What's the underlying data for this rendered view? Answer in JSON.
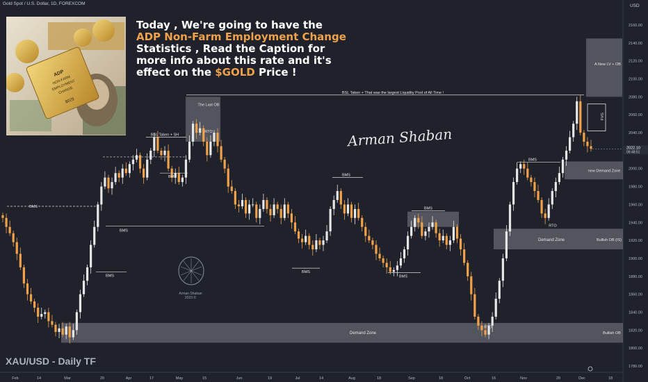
{
  "symbol_title": "Gold Spot / U.S. Dollar, 1D, FOREXCOM",
  "currency": "USD",
  "headline": {
    "line1": "Today , We're going to have the",
    "line2_highlight": "ADP Non-Farm Employment Change",
    "line3": "Statistics , Read the Caption for",
    "line4": "more info about this rate and it's",
    "line5_pre": "effect on the ",
    "line5_highlight": "$GOLD",
    "line5_post": " Price !"
  },
  "timeframe_label": "XAU/USD - Daily TF",
  "signature": "Arman Shaban",
  "watermark": {
    "name": "Arman Shaban",
    "year": "2023 ©"
  },
  "news_image": {
    "badge_text": "ADP NON-FARM EMPLOYMENT CHANGE",
    "price_tag": "$029"
  },
  "colors": {
    "background": "#1f222b",
    "up": "#e6e6e6",
    "down": "#f0a14a",
    "zone": "#7b7f86",
    "highlight": "#f0a14a"
  },
  "chart_data": {
    "type": "candlestick",
    "title": "Gold Spot / U.S. Dollar, 1D, FOREXCOM",
    "ylim": [
      1775,
      2170
    ],
    "y_ticks": [
      1780,
      1800,
      1820,
      1840,
      1860,
      1880,
      1900,
      1920,
      1940,
      1960,
      1980,
      2000,
      2020,
      2040,
      2060,
      2080,
      2100,
      2120,
      2140,
      2160
    ],
    "x_tick_labels": [
      "Feb",
      "14",
      "Mar",
      "20",
      "Apr",
      "17",
      "May",
      "15",
      "Jun",
      "19",
      "Jul",
      "14",
      "Aug",
      "18",
      "Sep",
      "18",
      "Oct",
      "16",
      "Nov",
      "20",
      "Dec",
      "18"
    ],
    "current_price": "2022.10",
    "current_countdown": "09:48:51",
    "closes": [
      1945,
      1935,
      1928,
      1918,
      1905,
      1890,
      1872,
      1860,
      1852,
      1845,
      1835,
      1838,
      1840,
      1830,
      1826,
      1818,
      1822,
      1815,
      1824,
      1812,
      1820,
      1840,
      1860,
      1875,
      1890,
      1915,
      1935,
      1960,
      1980,
      1990,
      1978,
      1985,
      1995,
      1990,
      2000,
      1995,
      2005,
      2010,
      2015,
      2000,
      1990,
      2010,
      2020,
      2035,
      2020,
      2015,
      2020,
      2000,
      1990,
      1995,
      1985,
      1990,
      2010,
      2030,
      2050,
      2040,
      2045,
      2030,
      2015,
      2030,
      2040,
      2025,
      2010,
      2000,
      1980,
      1975,
      1960,
      1958,
      1965,
      1950,
      1960,
      1960,
      1945,
      1955,
      1965,
      1955,
      1948,
      1960,
      1955,
      1945,
      1960,
      1950,
      1940,
      1930,
      1922,
      1918,
      1925,
      1915,
      1910,
      1920,
      1915,
      1920,
      1930,
      1955,
      1965,
      1975,
      1960,
      1950,
      1960,
      1945,
      1955,
      1945,
      1935,
      1925,
      1920,
      1915,
      1905,
      1900,
      1895,
      1890,
      1885,
      1887,
      1892,
      1900,
      1910,
      1925,
      1935,
      1945,
      1940,
      1925,
      1930,
      1935,
      1940,
      1928,
      1920,
      1925,
      1915,
      1920,
      1935,
      1922,
      1910,
      1895,
      1880,
      1860,
      1835,
      1825,
      1820,
      1815,
      1825,
      1835,
      1855,
      1875,
      1900,
      1930,
      1960,
      1985,
      2000,
      2005,
      2000,
      1990,
      1985,
      1975,
      1965,
      1950,
      1945,
      1960,
      1975,
      1985,
      1995,
      2010,
      2020,
      2035,
      2050,
      2075,
      2040,
      2030,
      2025,
      2022
    ],
    "annotations": {
      "headline_line": "BSL Taken + That was the largest Liquidity Pool of All Time !",
      "bsl_sh": "BSL Taken + SH",
      "last_ob": "The Last OB",
      "rto": "RTO",
      "bms": "BMS",
      "new_lv_ob": "A New LV + OB",
      "fvg": "FVG",
      "new_demand": "new Demand Zone",
      "bullish_ob_is": "Bullish OB (IS)",
      "demand_zone": "Demand Zone",
      "bullish_ob": "Bullish OB"
    },
    "grid": false,
    "legend": "none"
  }
}
